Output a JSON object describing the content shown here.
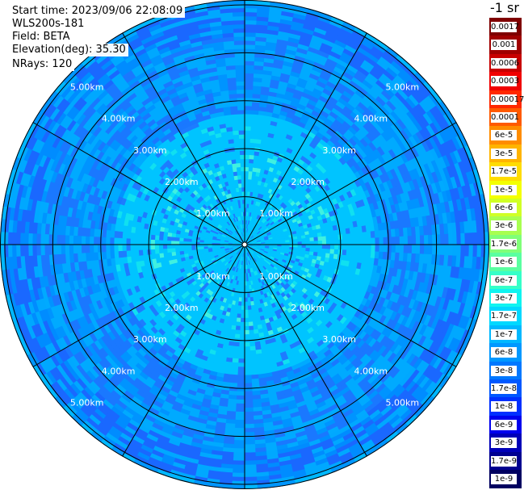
{
  "header": {
    "start_time": "Start time: 2023/09/06 22:08:09",
    "instrument": "WLS200s-181",
    "field": "Field: BETA",
    "elevation": "Elevation(deg): 35.30",
    "nrays": "NRays: 120"
  },
  "unit_label": "-1 sr",
  "range_rings": {
    "unit": "km",
    "values": [
      1.0,
      2.0,
      3.0,
      4.0,
      5.0
    ],
    "labels": [
      "1.00km",
      "2.00km",
      "3.00km",
      "4.00km",
      "5.00km"
    ],
    "max_range_km": 5.1
  },
  "spokes_deg": [
    0,
    30,
    60,
    90,
    120,
    150,
    180,
    210,
    240,
    270,
    300,
    330
  ],
  "colorbar": [
    {
      "label": "0.0017",
      "color": "#7f0000"
    },
    {
      "label": "0.001",
      "color": "#a00000"
    },
    {
      "label": "0.0006",
      "color": "#c80000"
    },
    {
      "label": "0.0003",
      "color": "#f00000"
    },
    {
      "label": "0.00017",
      "color": "#ff2800"
    },
    {
      "label": "0.0001",
      "color": "#ff5a00"
    },
    {
      "label": "6e-5",
      "color": "#ff8c00"
    },
    {
      "label": "3e-5",
      "color": "#ffb400"
    },
    {
      "label": "1.7e-5",
      "color": "#ffdc00"
    },
    {
      "label": "1e-5",
      "color": "#f4ff00"
    },
    {
      "label": "6e-6",
      "color": "#d0ff26"
    },
    {
      "label": "3e-6",
      "color": "#a8ff50"
    },
    {
      "label": "1.7e-6",
      "color": "#80ff78"
    },
    {
      "label": "1e-6",
      "color": "#5affa0"
    },
    {
      "label": "6e-7",
      "color": "#36ffc8"
    },
    {
      "label": "3e-7",
      "color": "#10f4f0"
    },
    {
      "label": "1.7e-7",
      "color": "#00d8ff"
    },
    {
      "label": "1e-7",
      "color": "#00b8ff"
    },
    {
      "label": "6e-8",
      "color": "#0098ff"
    },
    {
      "label": "3e-8",
      "color": "#0078ff"
    },
    {
      "label": "1.7e-8",
      "color": "#0058ff"
    },
    {
      "label": "1e-8",
      "color": "#0030ff"
    },
    {
      "label": "6e-9",
      "color": "#0000ee"
    },
    {
      "label": "3e-9",
      "color": "#0000b8"
    },
    {
      "label": "1.7e-9",
      "color": "#000090"
    },
    {
      "label": "1e-9",
      "color": "#000060"
    }
  ]
}
